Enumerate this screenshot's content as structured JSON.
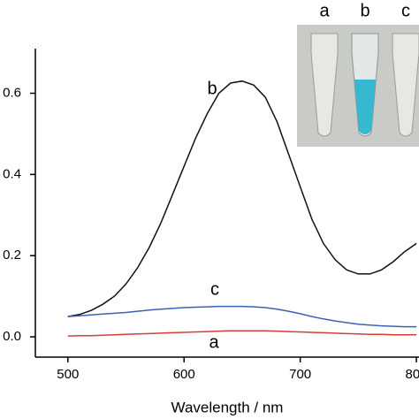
{
  "chart_data": {
    "type": "line",
    "x_label": "Wavelength / nm",
    "x": [
      500,
      510,
      520,
      530,
      540,
      550,
      560,
      570,
      580,
      590,
      600,
      610,
      620,
      630,
      640,
      650,
      660,
      670,
      680,
      690,
      700,
      710,
      720,
      730,
      740,
      750,
      760,
      770,
      780,
      790,
      800
    ],
    "series": [
      {
        "name": "a",
        "color": "#d93a3a",
        "values": [
          0.002,
          0.003,
          0.003,
          0.004,
          0.005,
          0.006,
          0.007,
          0.008,
          0.009,
          0.01,
          0.011,
          0.012,
          0.013,
          0.014,
          0.015,
          0.015,
          0.015,
          0.015,
          0.014,
          0.013,
          0.012,
          0.011,
          0.01,
          0.009,
          0.008,
          0.007,
          0.006,
          0.006,
          0.005,
          0.005,
          0.005
        ]
      },
      {
        "name": "b",
        "color": "#111111",
        "values": [
          0.05,
          0.055,
          0.065,
          0.08,
          0.1,
          0.13,
          0.17,
          0.22,
          0.28,
          0.35,
          0.42,
          0.49,
          0.55,
          0.6,
          0.625,
          0.63,
          0.62,
          0.59,
          0.53,
          0.45,
          0.37,
          0.29,
          0.23,
          0.19,
          0.165,
          0.155,
          0.155,
          0.165,
          0.185,
          0.21,
          0.23
        ]
      },
      {
        "name": "c",
        "color": "#3a63b0",
        "values": [
          0.05,
          0.052,
          0.054,
          0.056,
          0.058,
          0.06,
          0.063,
          0.066,
          0.068,
          0.07,
          0.072,
          0.073,
          0.074,
          0.075,
          0.075,
          0.075,
          0.074,
          0.072,
          0.068,
          0.063,
          0.057,
          0.05,
          0.044,
          0.039,
          0.035,
          0.031,
          0.029,
          0.027,
          0.026,
          0.025,
          0.025
        ]
      }
    ],
    "xlim": [
      472,
      803
    ],
    "xticks": [
      500,
      600,
      700,
      800
    ],
    "ylim": [
      -0.05,
      0.71
    ],
    "yticks": [
      {
        "value": 0,
        "label": "0.0"
      },
      {
        "value": 0.2,
        "label": "0.2"
      },
      {
        "value": 0.4,
        "label": "0.4"
      },
      {
        "value": 0.6,
        "label": "0.6"
      }
    ],
    "inset_labels": [
      "a",
      "b",
      "c"
    ]
  }
}
